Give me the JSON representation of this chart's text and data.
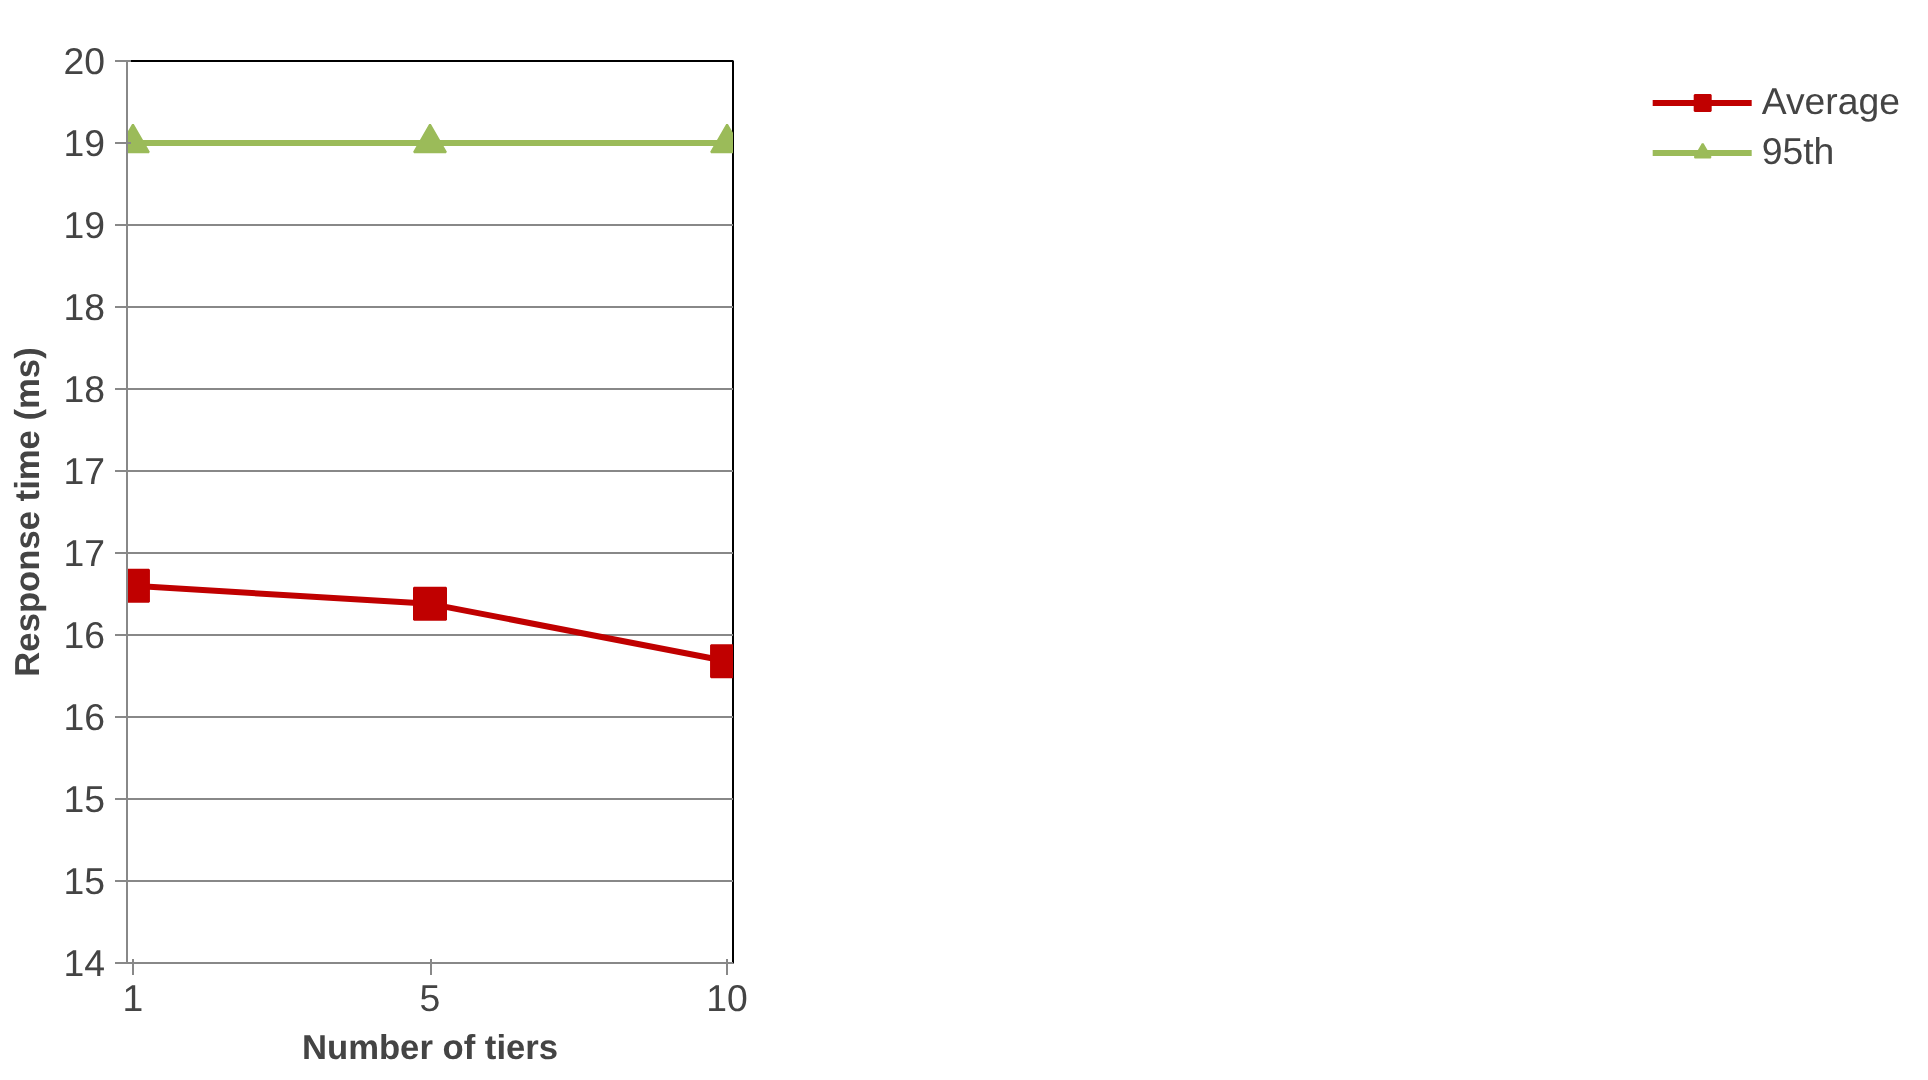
{
  "chart_data": {
    "type": "line",
    "xlabel": "Number of tiers",
    "ylabel": "Response time (ms)",
    "categories": [
      "1",
      "5",
      "10"
    ],
    "series": [
      {
        "name": "Average",
        "color": "#c00000",
        "marker": "square",
        "values": [
          16.3,
          16.19,
          15.84
        ]
      },
      {
        "name": "95th",
        "color": "#9bbb59",
        "marker": "triangle",
        "values": [
          19.0,
          19.0,
          19.0
        ]
      }
    ],
    "ylim": [
      14,
      19.5
    ],
    "yticks": [
      {
        "value": 14,
        "label": "14"
      },
      {
        "value": 14.5,
        "label": "15"
      },
      {
        "value": 15,
        "label": "15"
      },
      {
        "value": 15.5,
        "label": "16"
      },
      {
        "value": 16,
        "label": "16"
      },
      {
        "value": 16.5,
        "label": "17"
      },
      {
        "value": 17,
        "label": "17"
      },
      {
        "value": 17.5,
        "label": "18"
      },
      {
        "value": 18,
        "label": "18"
      },
      {
        "value": 18.5,
        "label": "19"
      },
      {
        "value": 19,
        "label": "19"
      },
      {
        "value": 19.5,
        "label": "20"
      }
    ],
    "grid": "y",
    "legend": "right"
  }
}
